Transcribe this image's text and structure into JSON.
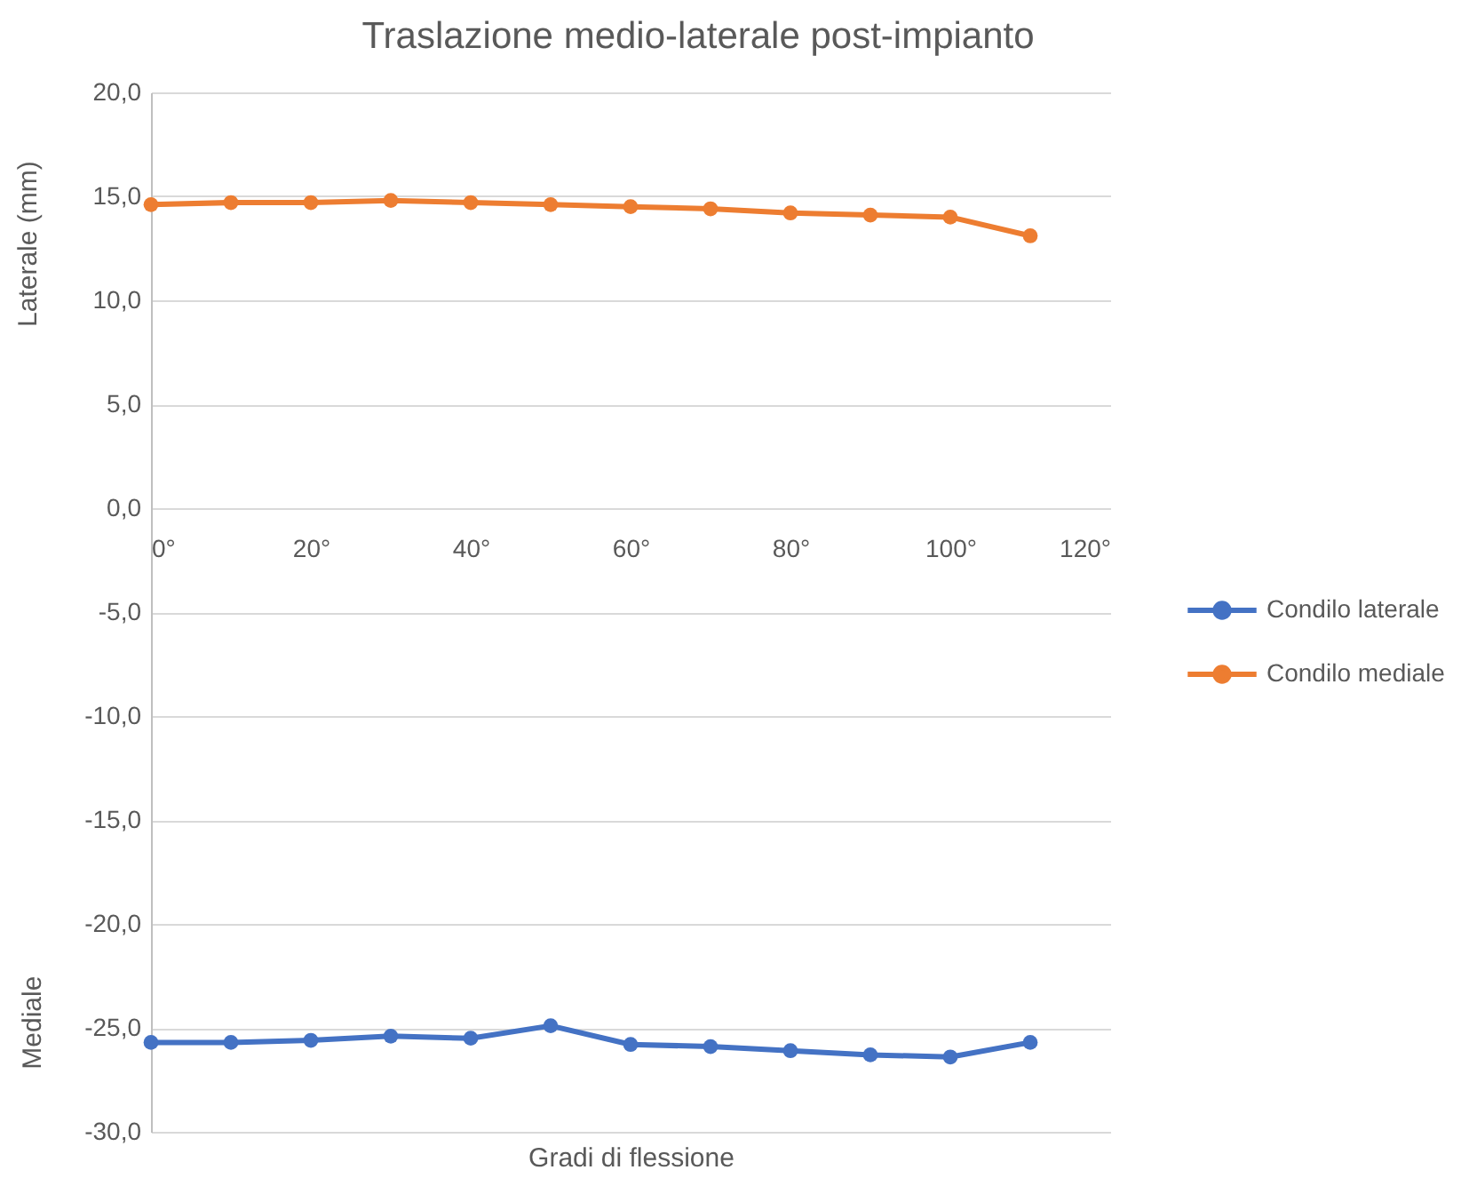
{
  "chart_data": {
    "type": "line",
    "title": "Traslazione medio-laterale post-impianto",
    "xlabel": "Gradi di flessione",
    "ylabel": "Laterale (mm)",
    "annotations": [
      "Mediale"
    ],
    "x": [
      0,
      10,
      20,
      30,
      40,
      50,
      60,
      70,
      80,
      90,
      100,
      110
    ],
    "series": [
      {
        "name": "Condilo laterale",
        "color": "#4472c4",
        "values": [
          -25.7,
          -25.7,
          -25.6,
          -25.4,
          -25.5,
          -24.9,
          -25.8,
          -25.9,
          -26.1,
          -26.3,
          -26.4,
          -25.7
        ]
      },
      {
        "name": "Condilo mediale",
        "color": "#ed7d31",
        "values": [
          14.6,
          14.7,
          14.7,
          14.8,
          14.7,
          14.6,
          14.5,
          14.4,
          14.2,
          14.1,
          14.0,
          13.1
        ]
      }
    ],
    "xlim": [
      0,
      120
    ],
    "xticks": [
      {
        "value": 0,
        "label": "0°"
      },
      {
        "value": 20,
        "label": "20°"
      },
      {
        "value": 40,
        "label": "40°"
      },
      {
        "value": 60,
        "label": "60°"
      },
      {
        "value": 80,
        "label": "80°"
      },
      {
        "value": 100,
        "label": "100°"
      },
      {
        "value": 120,
        "label": "120°"
      }
    ],
    "ylim": [
      -30,
      20
    ],
    "yticks": [
      {
        "value": -30,
        "label": "-30,0"
      },
      {
        "value": -25,
        "label": "-25,0"
      },
      {
        "value": -20,
        "label": "-20,0"
      },
      {
        "value": -15,
        "label": "-15,0"
      },
      {
        "value": -10,
        "label": "-10,0"
      },
      {
        "value": -5,
        "label": "-5,0"
      },
      {
        "value": 0,
        "label": "0,0"
      },
      {
        "value": 5,
        "label": "5,0"
      },
      {
        "value": 10,
        "label": "10,0"
      },
      {
        "value": 15,
        "label": "15,0"
      },
      {
        "value": 20,
        "label": "20,0"
      }
    ],
    "grid": "y",
    "legend": "right",
    "marker": "circle",
    "line_style": "solid"
  }
}
